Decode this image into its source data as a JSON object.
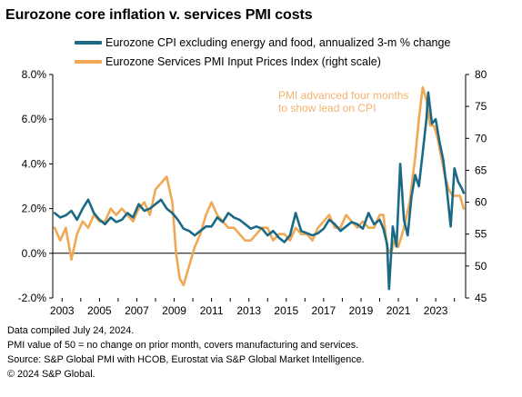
{
  "title": "Eurozone core inflation v. services PMI costs",
  "colors": {
    "cpi": "#1a6a86",
    "pmi": "#f0a854",
    "annotation": "#f5b26e",
    "axis": "#000000",
    "grid": "#d9d9d9"
  },
  "legend": {
    "cpi": "Eurozone CPI excluding energy and food, annualized 3-m % change",
    "pmi": "Eurozone Services PMI Input Prices Index (right scale)"
  },
  "annotation": {
    "line1": "PMI advanced four months",
    "line2": "to show lead on CPI"
  },
  "footer": {
    "line1": "Data compiled July 24, 2024.",
    "line2": "PMI value of 50 = no change on prior month, covers manufacturing and services.",
    "line3": "Source: S&P Global PMI with HCOB, Eurostat via S&P Global Market Intelligence.",
    "line4": "© 2024 S&P Global."
  },
  "chart_data": {
    "type": "line",
    "title": "Eurozone core inflation v. services PMI costs",
    "x_tick_labels": [
      "2003",
      "2005",
      "2007",
      "2009",
      "2011",
      "2013",
      "2015",
      "2017",
      "2019",
      "2021",
      "2023"
    ],
    "x_range": [
      2002.5,
      2024.6
    ],
    "y_left": {
      "range": [
        -2,
        8
      ],
      "ticks": [
        -2,
        0,
        2,
        4,
        6,
        8
      ],
      "tick_labels": [
        "-2.0%",
        "0.0%",
        "2.0%",
        "4.0%",
        "6.0%",
        "8.0%"
      ]
    },
    "y_right": {
      "range": [
        45,
        80
      ],
      "ticks": [
        45,
        50,
        55,
        60,
        65,
        70,
        75,
        80
      ],
      "tick_labels": [
        "45",
        "50",
        "55",
        "60",
        "65",
        "70",
        "75",
        "80"
      ]
    },
    "series": [
      {
        "name": "Eurozone CPI excluding energy and food, annualized 3-m % change",
        "axis": "left",
        "x": [
          2002.6,
          2002.9,
          2003.2,
          2003.5,
          2003.8,
          2004.1,
          2004.4,
          2004.7,
          2005.0,
          2005.3,
          2005.6,
          2005.9,
          2006.2,
          2006.5,
          2006.8,
          2007.1,
          2007.4,
          2007.7,
          2008.0,
          2008.3,
          2008.6,
          2008.9,
          2009.2,
          2009.5,
          2009.8,
          2010.1,
          2010.4,
          2010.7,
          2011.0,
          2011.3,
          2011.6,
          2011.9,
          2012.2,
          2012.5,
          2012.8,
          2013.1,
          2013.4,
          2013.7,
          2014.0,
          2014.3,
          2014.6,
          2014.9,
          2015.2,
          2015.5,
          2015.8,
          2016.1,
          2016.4,
          2016.7,
          2017.0,
          2017.3,
          2017.6,
          2017.9,
          2018.2,
          2018.5,
          2018.8,
          2019.1,
          2019.4,
          2019.7,
          2020.0,
          2020.2,
          2020.4,
          2020.5,
          2020.7,
          2020.9,
          2021.1,
          2021.3,
          2021.5,
          2021.7,
          2021.9,
          2022.1,
          2022.3,
          2022.5,
          2022.6,
          2022.8,
          2023.0,
          2023.2,
          2023.4,
          2023.6,
          2023.8,
          2024.0,
          2024.2,
          2024.4,
          2024.5
        ],
        "values": [
          1.8,
          1.6,
          1.7,
          1.9,
          1.5,
          2.0,
          2.4,
          1.8,
          1.5,
          1.3,
          1.6,
          1.4,
          1.5,
          1.8,
          1.6,
          2.2,
          1.9,
          2.0,
          2.2,
          2.4,
          2.0,
          1.8,
          1.5,
          1.1,
          1.0,
          0.8,
          1.0,
          1.2,
          1.2,
          1.6,
          1.4,
          1.8,
          1.6,
          1.5,
          1.3,
          1.1,
          1.2,
          1.1,
          0.8,
          1.0,
          0.7,
          0.5,
          0.8,
          1.8,
          1.0,
          0.9,
          0.8,
          0.9,
          1.1,
          1.5,
          1.3,
          1.0,
          1.2,
          1.4,
          1.3,
          1.1,
          1.8,
          1.3,
          1.5,
          1.1,
          0.4,
          -1.6,
          1.2,
          0.3,
          4.0,
          1.5,
          0.8,
          2.5,
          3.5,
          3.0,
          4.5,
          6.0,
          7.2,
          5.8,
          6.0,
          5.0,
          4.2,
          2.8,
          1.2,
          3.8,
          3.2,
          2.9,
          2.7
        ]
      },
      {
        "name": "Eurozone Services PMI Input Prices Index (right scale)",
        "axis": "right",
        "x": [
          2002.6,
          2002.9,
          2003.2,
          2003.5,
          2003.8,
          2004.1,
          2004.4,
          2004.7,
          2005.0,
          2005.3,
          2005.6,
          2005.9,
          2006.2,
          2006.5,
          2006.8,
          2007.1,
          2007.4,
          2007.7,
          2008.0,
          2008.3,
          2008.6,
          2008.9,
          2009.1,
          2009.3,
          2009.5,
          2009.8,
          2010.1,
          2010.4,
          2010.7,
          2011.0,
          2011.3,
          2011.6,
          2011.9,
          2012.2,
          2012.5,
          2012.8,
          2013.1,
          2013.4,
          2013.7,
          2014.0,
          2014.3,
          2014.6,
          2014.9,
          2015.2,
          2015.5,
          2015.8,
          2016.1,
          2016.4,
          2016.7,
          2017.0,
          2017.3,
          2017.6,
          2017.9,
          2018.2,
          2018.5,
          2018.8,
          2019.1,
          2019.4,
          2019.7,
          2020.0,
          2020.2,
          2020.4,
          2020.6,
          2020.8,
          2021.0,
          2021.3,
          2021.6,
          2021.9,
          2022.1,
          2022.3,
          2022.5,
          2022.7,
          2022.9,
          2023.1,
          2023.3,
          2023.5,
          2023.7,
          2023.9,
          2024.1,
          2024.3,
          2024.5
        ],
        "values": [
          56,
          54,
          56,
          51,
          55,
          57,
          56,
          58,
          57,
          57,
          59,
          58,
          59,
          58,
          57,
          59,
          60,
          58,
          62,
          63,
          64,
          60,
          52,
          48,
          47,
          50,
          53,
          55,
          58,
          60,
          58,
          57,
          56,
          56,
          55,
          54,
          54,
          55,
          56,
          56,
          54,
          55,
          55,
          54,
          56,
          55,
          55,
          54,
          56,
          57,
          58,
          56,
          56,
          58,
          57,
          56,
          57,
          56,
          56,
          58,
          58,
          53,
          52,
          54,
          53,
          56,
          60,
          67,
          73,
          78,
          76,
          72,
          72,
          70,
          67,
          64,
          62,
          61,
          61,
          61,
          59
        ]
      }
    ],
    "annotations": [
      "PMI advanced four months",
      "to show lead on CPI"
    ],
    "grid": false,
    "legend_position": "top"
  }
}
